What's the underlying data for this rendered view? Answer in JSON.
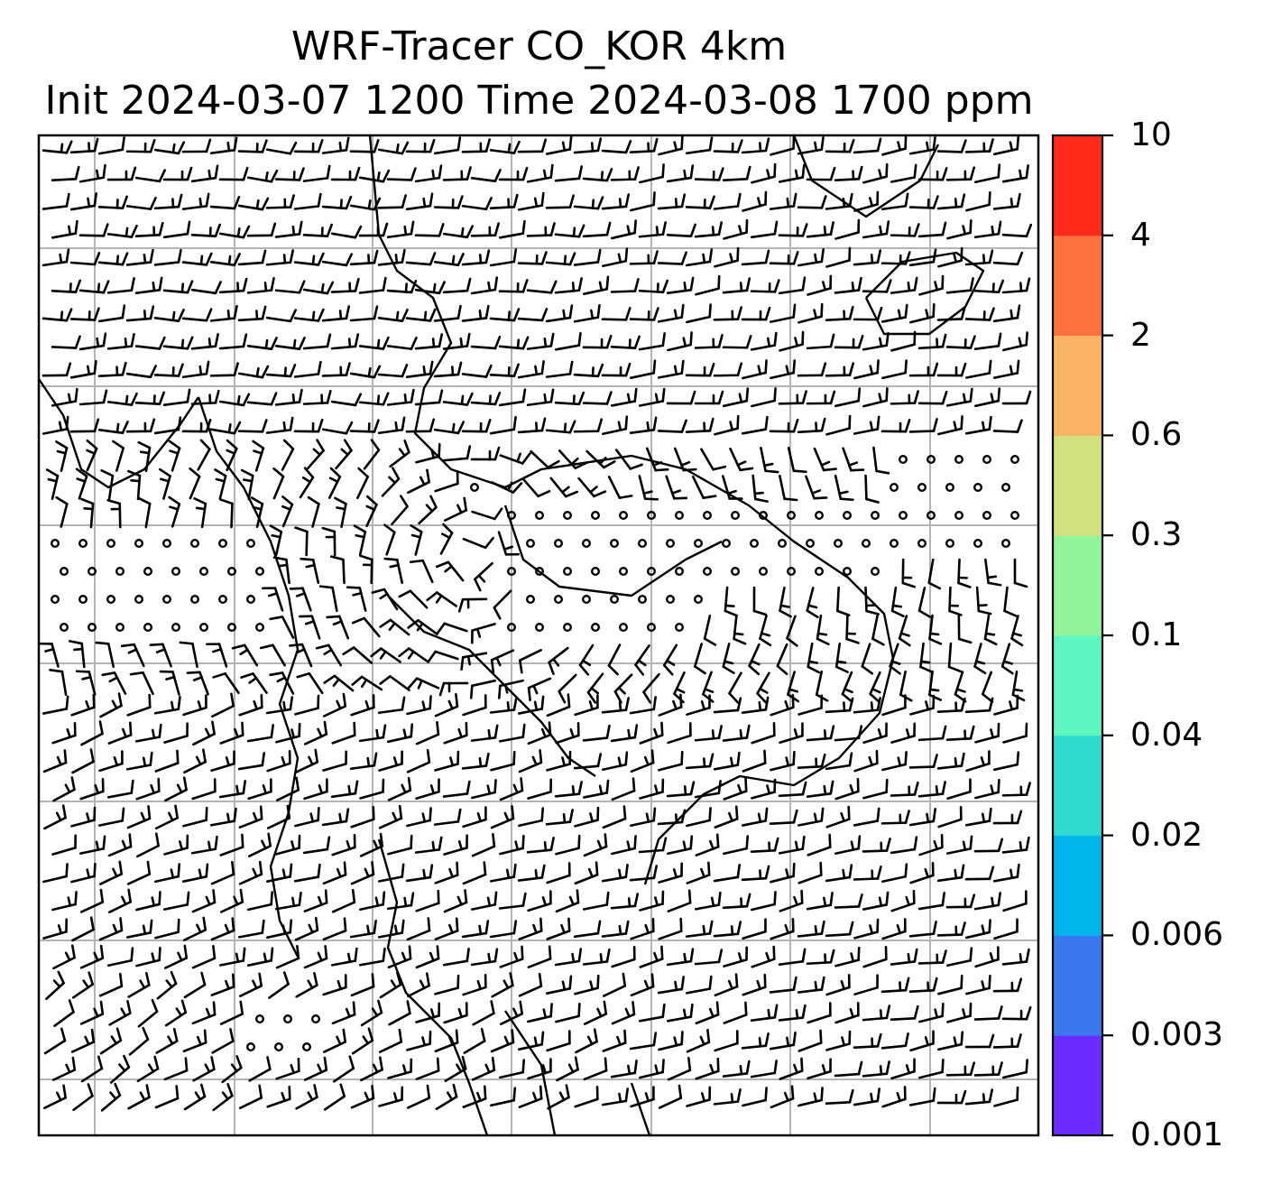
{
  "title": {
    "line1": "WRF-Tracer CO_KOR 4km",
    "line2": "Init 2024-03-07 1200 Time 2024-03-08 1700 ppm"
  },
  "map": {
    "gridlines": true,
    "coastlines": true,
    "overlay": "wind barbs",
    "calm_marker": "small circle"
  },
  "colorbar": {
    "orientation": "vertical",
    "placement": "right",
    "ticks": [
      "0.001",
      "0.003",
      "0.006",
      "0.02",
      "0.04",
      "0.1",
      "0.3",
      "0.6",
      "2",
      "4",
      "10"
    ],
    "colors": [
      "#6a2cff",
      "#3a78f0",
      "#00b4ec",
      "#2ed9d0",
      "#5ef6c0",
      "#92f49a",
      "#d2e080",
      "#fbb465",
      "#ff7240",
      "#ff2a1a"
    ]
  }
}
